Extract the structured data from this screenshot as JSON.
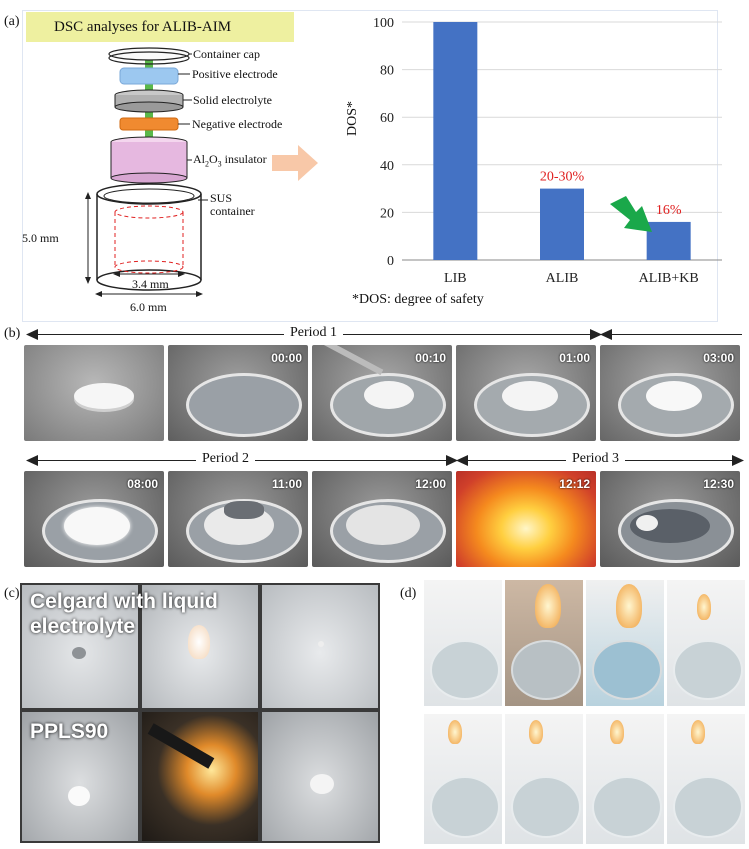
{
  "panel_a": {
    "label": "(a)",
    "title": "DSC analyses for ALIB-AIM",
    "parts": [
      "Container cap",
      "Positive electrode",
      "Solid electrolyte",
      "Negative electrode"
    ],
    "insulator_prefix": "Al",
    "insulator_sub1": "2",
    "insulator_mid": "O",
    "insulator_sub2": "3",
    "insulator_suffix": " insulator",
    "sus_line1": "SUS",
    "sus_line2": "container",
    "dim_height": "5.0 mm",
    "dim_inner": "3.4 mm",
    "dim_outer": "6.0 mm",
    "footnote": "*DOS: degree of safety",
    "colors": {
      "bar": "#4472c4",
      "annotation": "#e02020",
      "green_arrow": "#1aa84a",
      "peach_arrow": "#f8c8a8",
      "title_bg": "#eef0a0"
    }
  },
  "chart_data": {
    "type": "bar",
    "categories": [
      "LIB",
      "ALIB",
      "ALIB+KB"
    ],
    "values": [
      100,
      30,
      16
    ],
    "value_labels": [
      "",
      "20-30%",
      "16%"
    ],
    "ylabel": "DOS*",
    "xlabel": "",
    "ylim": [
      0,
      100
    ],
    "yticks": [
      "0",
      "20",
      "40",
      "60",
      "80",
      "100"
    ],
    "grid": true
  },
  "panel_b": {
    "label": "(b)",
    "periods": [
      "Period 1",
      "Period 2",
      "Period 3"
    ],
    "row1_times": [
      "",
      "00:00",
      "00:10",
      "01:00",
      "03:00"
    ],
    "row2_times": [
      "08:00",
      "11:00",
      "12:00",
      "12:12",
      "12:30"
    ]
  },
  "panel_c": {
    "label": "(c)",
    "text_top": "Celgard with liquid electrolyte",
    "text_bottom": "PPLS90"
  },
  "panel_d": {
    "label": "(d)"
  }
}
